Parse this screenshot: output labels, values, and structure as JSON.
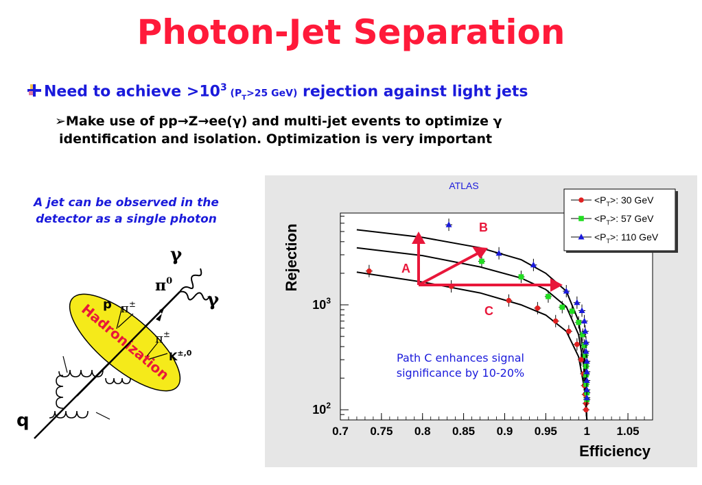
{
  "title": "Photon-Jet Separation",
  "bullet": {
    "part1": "Need to achieve >10",
    "exp": "3",
    "paren_open": " (P",
    "paren_sub": "T",
    "paren_close": ">25 GeV)",
    "part2": " rejection against light jets"
  },
  "sub_bullet": {
    "marker": "➢",
    "line1": "Make use of pp→Z→ee(γ) and multi-jet events to optimize γ",
    "line2": "identification and isolation. Optimization is very important"
  },
  "jet_caption": "A jet can be observed in the detector as a single photon",
  "diagram": {
    "gamma1": "γ",
    "gamma2": "γ",
    "pi0": "π",
    "pi0_sup": "0",
    "p_label": "p",
    "pi_pm1": "π",
    "pi_pm1_sup": "±",
    "pi_pm2": "π",
    "pi_pm2_sup": "±",
    "k_label": "K",
    "k_sup": "±,0",
    "hadronization": "Hadronization",
    "quark": "q"
  },
  "colors": {
    "title": "#ff1a3a",
    "blue_text": "#1a1adb",
    "arrow": "#e8173a",
    "hadron_fill": "#f5ea1a"
  },
  "chart_data": {
    "type": "scatter",
    "title": "ATLAS",
    "xlabel": "Efficiency",
    "ylabel": "Rejection",
    "xlim": [
      0.7,
      1.08
    ],
    "ylog": true,
    "ylim": [
      80,
      7500
    ],
    "x_ticks": [
      "0.7",
      "0.75",
      "0.8",
      "0.85",
      "0.9",
      "0.95",
      "1",
      "1.05"
    ],
    "x_tick_values": [
      0.7,
      0.75,
      0.8,
      0.85,
      0.9,
      0.95,
      1.0,
      1.05
    ],
    "y_tick_labels": [
      {
        "base": "10",
        "exp": "3",
        "value": 1000
      },
      {
        "base": "10",
        "exp": "2",
        "value": 100
      }
    ],
    "legend": [
      {
        "pre": "<P",
        "sub": "T",
        "post": ">: 30 GeV",
        "color": "#e02020",
        "marker": "circle"
      },
      {
        "pre": "<P",
        "sub": "T",
        "post": ">: 57 GeV",
        "color": "#22dd22",
        "marker": "square"
      },
      {
        "pre": "<P",
        "sub": "T",
        "post": ">: 110 GeV",
        "color": "#1a1adb",
        "marker": "triangle"
      }
    ],
    "legend_position": "top-right",
    "series": [
      {
        "color": "#e02020",
        "marker": "circle",
        "points": [
          [
            0.735,
            2100
          ],
          [
            0.835,
            1500
          ],
          [
            0.905,
            1100
          ],
          [
            0.94,
            930
          ],
          [
            0.962,
            700
          ],
          [
            0.978,
            560
          ],
          [
            0.988,
            420
          ],
          [
            0.993,
            300
          ],
          [
            0.996,
            220
          ],
          [
            0.997,
            170
          ],
          [
            0.998,
            140
          ],
          [
            0.999,
            115
          ],
          [
            0.999,
            100
          ]
        ]
      },
      {
        "color": "#22dd22",
        "marker": "square",
        "points": [
          [
            0.872,
            2600
          ],
          [
            0.92,
            1850
          ],
          [
            0.953,
            1200
          ],
          [
            0.97,
            950
          ],
          [
            0.982,
            870
          ],
          [
            0.99,
            680
          ],
          [
            0.995,
            520
          ],
          [
            0.997,
            410
          ],
          [
            0.998,
            330
          ],
          [
            0.999,
            260
          ],
          [
            0.999,
            215
          ],
          [
            0.999,
            175
          ],
          [
            1.0,
            145
          ],
          [
            1.0,
            125
          ]
        ]
      },
      {
        "color": "#1a1adb",
        "marker": "triangle",
        "points": [
          [
            0.832,
            5800
          ],
          [
            0.893,
            3100
          ],
          [
            0.935,
            2400
          ],
          [
            0.975,
            1350
          ],
          [
            0.988,
            1050
          ],
          [
            0.994,
            880
          ],
          [
            0.997,
            700
          ],
          [
            0.998,
            560
          ],
          [
            0.999,
            440
          ],
          [
            0.999,
            360
          ],
          [
            1.0,
            290
          ],
          [
            1.0,
            230
          ],
          [
            1.0,
            190
          ],
          [
            1.0,
            155
          ],
          [
            1.0,
            130
          ]
        ]
      }
    ],
    "curves": [
      {
        "points": [
          [
            0.72,
            2050
          ],
          [
            0.8,
            1650
          ],
          [
            0.87,
            1300
          ],
          [
            0.92,
            1000
          ],
          [
            0.95,
            800
          ],
          [
            0.975,
            560
          ],
          [
            0.99,
            320
          ],
          [
            0.997,
            160
          ],
          [
            1.0,
            80
          ]
        ]
      },
      {
        "points": [
          [
            0.72,
            3500
          ],
          [
            0.8,
            2950
          ],
          [
            0.87,
            2300
          ],
          [
            0.92,
            1800
          ],
          [
            0.95,
            1400
          ],
          [
            0.975,
            960
          ],
          [
            0.99,
            520
          ],
          [
            0.997,
            240
          ],
          [
            1.0,
            80
          ]
        ]
      },
      {
        "points": [
          [
            0.72,
            5200
          ],
          [
            0.8,
            4400
          ],
          [
            0.87,
            3500
          ],
          [
            0.92,
            2700
          ],
          [
            0.95,
            2000
          ],
          [
            0.975,
            1350
          ],
          [
            0.99,
            700
          ],
          [
            0.997,
            300
          ],
          [
            1.0,
            80
          ]
        ]
      }
    ],
    "arrow_labels": {
      "a": "A",
      "b": "B",
      "c": "C"
    },
    "annotation": "Path C enhances signal significance by 10-20%"
  }
}
